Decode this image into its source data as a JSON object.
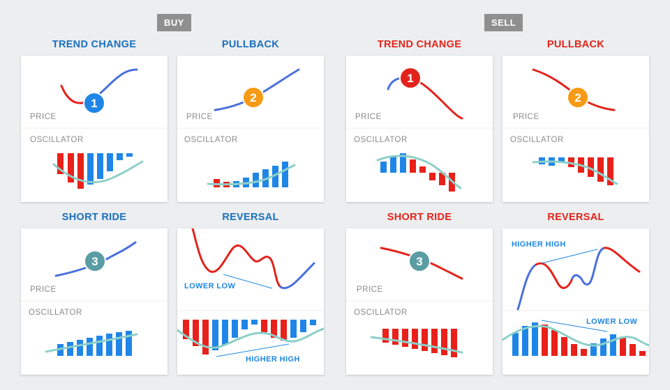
{
  "sections": {
    "buy": "BUY",
    "sell": "SELL"
  },
  "labels": {
    "price": "PRICE",
    "oscillator": "OSCILLATOR"
  },
  "titles": {
    "trend_change": "TREND CHANGE",
    "pullback": "PULLBACK",
    "short_ride": "SHORT RIDE",
    "reversal": "REVERSAL"
  },
  "badges": {
    "one": "1",
    "two": "2",
    "three": "3"
  },
  "annotations": {
    "lower_low": "LOWER LOW",
    "higher_high": "HIGHER HIGH"
  },
  "colors": {
    "buy_text": "#1a6fbf",
    "sell_text": "#e3231b",
    "bull_line": "#4a6fdc",
    "bear_line": "#e3231b",
    "bull_bar": "#1f86e8",
    "bear_bar": "#e8211a",
    "oscillator_line": "#8ccfc8",
    "badge_blue": "#1f86e8",
    "badge_orange": "#f79a14",
    "badge_teal": "#5a9ca3",
    "badge_red": "#e3231b"
  }
}
